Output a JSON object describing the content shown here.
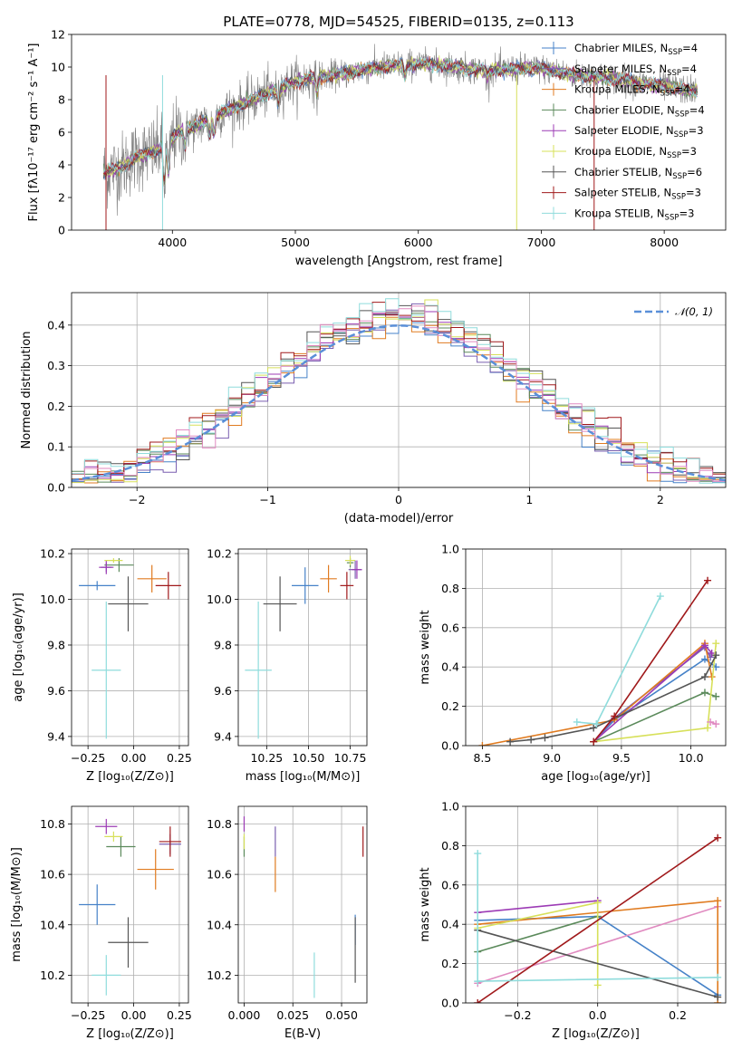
{
  "figure_title": "PLATE=0778, MJD=54525, FIBERID=0135, z=0.113",
  "colors": {
    "Chabrier MILES": "#4682c8",
    "Salpeter MILES": "#7a5fb0",
    "Kroupa MILES": "#e07b20",
    "Chabrier ELODIE": "#5b8a5b",
    "Salpeter ELODIE": "#9c3bb5",
    "Kroupa ELODIE": "#d7e05a",
    "Chabrier STELIB": "#555555",
    "Salpeter STELIB": "#a0191b",
    "Kroupa STELIB": "#8fdcdc",
    "normal": "#5a8fd8"
  },
  "chart_data": [
    {
      "id": "spectrum",
      "type": "line",
      "title": "PLATE=0778, MJD=54525, FIBERID=0135, z=0.113",
      "xlabel": "wavelength [Angstrom, rest frame]",
      "ylabel": "Flux [fλ10⁻¹⁷ erg cm⁻² s⁻¹ A⁻¹]",
      "xlim": [
        3180,
        8500
      ],
      "ylim": [
        0,
        12
      ],
      "xticks": [
        4000,
        5000,
        6000,
        7000,
        8000
      ],
      "yticks": [
        0,
        2,
        4,
        6,
        8,
        10,
        12
      ],
      "grid": false,
      "legend_position": "right",
      "legend": [
        "Chabrier MILES, N_SSP=4",
        "Salpeter MILES, N_SSP=4",
        "Kroupa MILES, N_SSP=4",
        "Chabrier ELODIE, N_SSP=4",
        "Salpeter ELODIE, N_SSP=3",
        "Kroupa ELODIE, N_SSP=3",
        "Chabrier STELIB, N_SSP=6",
        "Salpeter STELIB, N_SSP=3",
        "Kroupa STELIB, N_SSP=3"
      ],
      "continuum": [
        [
          3440,
          3.5
        ],
        [
          3600,
          3.9
        ],
        [
          3700,
          4.5
        ],
        [
          3850,
          4.8
        ],
        [
          3950,
          5.2
        ],
        [
          4050,
          6.0
        ],
        [
          4200,
          6.4
        ],
        [
          4400,
          7.2
        ],
        [
          4600,
          7.8
        ],
        [
          4800,
          8.5
        ],
        [
          5000,
          9.1
        ],
        [
          5200,
          9.4
        ],
        [
          5400,
          9.6
        ],
        [
          5600,
          9.9
        ],
        [
          5800,
          10.1
        ],
        [
          6000,
          10.2
        ],
        [
          6200,
          10.1
        ],
        [
          6400,
          9.9
        ],
        [
          6600,
          9.8
        ],
        [
          6800,
          9.9
        ],
        [
          7000,
          9.9
        ],
        [
          7200,
          9.6
        ],
        [
          7400,
          9.4
        ],
        [
          7600,
          9.3
        ],
        [
          7800,
          9.0
        ],
        [
          8000,
          8.8
        ],
        [
          8270,
          8.5
        ]
      ]
    },
    {
      "id": "residuals",
      "type": "histogram",
      "xlabel": "(data-model)/error",
      "ylabel": "Normed distribution",
      "xlim": [
        -2.5,
        2.5
      ],
      "ylim": [
        0,
        0.48
      ],
      "xticks": [
        -2,
        -1,
        0,
        1,
        2
      ],
      "yticks": [
        0.0,
        0.1,
        0.2,
        0.3,
        0.4
      ],
      "grid": true,
      "legend_position": "upper right",
      "legend": [
        "𝒩(0, 1)"
      ],
      "bin_width": 0.1
    },
    {
      "id": "age_vs_Z",
      "type": "scatter",
      "xlabel": "Z [log₁₀(Z/Z⊙)]",
      "ylabel": "age  [log₁₀(age/yr)]",
      "xlim": [
        -0.34,
        0.3
      ],
      "ylim": [
        9.36,
        10.22
      ],
      "xticks": [
        -0.25,
        0.0,
        0.25
      ],
      "yticks": [
        9.4,
        9.6,
        9.8,
        10.0,
        10.2
      ],
      "grid": true,
      "points": [
        {
          "model": "Chabrier MILES",
          "x": -0.2,
          "y": 10.06,
          "xerr": 0.1,
          "yerr": 0.02
        },
        {
          "model": "Salpeter MILES",
          "x": -0.15,
          "y": 10.14,
          "xerr": 0.03,
          "yerr": 0.02
        },
        {
          "model": "Kroupa MILES",
          "x": 0.1,
          "y": 10.09,
          "xerr": 0.08,
          "yerr": 0.06
        },
        {
          "model": "Chabrier ELODIE",
          "x": -0.08,
          "y": 10.15,
          "xerr": 0.08,
          "yerr": 0.03
        },
        {
          "model": "Salpeter ELODIE",
          "x": -0.15,
          "y": 10.14,
          "xerr": 0.04,
          "yerr": 0.03
        },
        {
          "model": "Kroupa ELODIE",
          "x": -0.11,
          "y": 10.17,
          "xerr": 0.05,
          "yerr": 0.01
        },
        {
          "model": "Chabrier STELIB",
          "x": -0.03,
          "y": 9.98,
          "xerr": 0.11,
          "yerr": 0.12
        },
        {
          "model": "Salpeter STELIB",
          "x": 0.19,
          "y": 10.06,
          "xerr": 0.07,
          "yerr": 0.06
        },
        {
          "model": "Kroupa STELIB",
          "x": -0.15,
          "y": 9.69,
          "xerr": 0.08,
          "yerr": 0.3
        }
      ]
    },
    {
      "id": "age_vs_mass",
      "type": "scatter",
      "xlabel": "mass [log₁₀(M/M⊙)]",
      "ylabel": "",
      "xlim": [
        10.08,
        10.85
      ],
      "ylim": [
        9.36,
        10.22
      ],
      "xticks": [
        10.25,
        10.5,
        10.75
      ],
      "yticks": [
        9.4,
        9.6,
        9.8,
        10.0,
        10.2
      ],
      "grid": true,
      "points": [
        {
          "model": "Chabrier MILES",
          "x": 10.48,
          "y": 10.06,
          "xerr": 0.08,
          "yerr": 0.08
        },
        {
          "model": "Salpeter MILES",
          "x": 10.78,
          "y": 10.13,
          "xerr": 0.04,
          "yerr": 0.04
        },
        {
          "model": "Kroupa MILES",
          "x": 10.62,
          "y": 10.09,
          "xerr": 0.05,
          "yerr": 0.06
        },
        {
          "model": "Chabrier ELODIE",
          "x": 10.75,
          "y": 10.16,
          "xerr": 0.02,
          "yerr": 0.02
        },
        {
          "model": "Salpeter ELODIE",
          "x": 10.79,
          "y": 10.13,
          "xerr": 0.03,
          "yerr": 0.04
        },
        {
          "model": "Kroupa ELODIE",
          "x": 10.75,
          "y": 10.17,
          "xerr": 0.03,
          "yerr": 0.02
        },
        {
          "model": "Chabrier STELIB",
          "x": 10.33,
          "y": 9.98,
          "xerr": 0.1,
          "yerr": 0.12
        },
        {
          "model": "Salpeter STELIB",
          "x": 10.73,
          "y": 10.06,
          "xerr": 0.04,
          "yerr": 0.06
        },
        {
          "model": "Kroupa STELIB",
          "x": 10.2,
          "y": 9.69,
          "xerr": 0.08,
          "yerr": 0.3
        }
      ]
    },
    {
      "id": "weight_vs_age",
      "type": "line",
      "xlabel": "age  [log₁₀(age/yr)]",
      "ylabel": "mass weight",
      "xlim": [
        8.38,
        10.25
      ],
      "ylim": [
        0,
        1.0
      ],
      "xticks": [
        8.5,
        9.0,
        9.5,
        10.0
      ],
      "yticks": [
        0.0,
        0.2,
        0.4,
        0.6,
        0.8,
        1.0
      ],
      "grid": true,
      "series": [
        {
          "model": "Chabrier MILES",
          "x": [
            9.3,
            9.45,
            10.1,
            10.18
          ],
          "y": [
            0.02,
            0.13,
            0.44,
            0.4
          ]
        },
        {
          "model": "Salpeter MILES",
          "x": [
            9.3,
            9.45,
            10.1,
            10.14
          ],
          "y": [
            0.02,
            0.14,
            0.5,
            0.45
          ]
        },
        {
          "model": "Kroupa MILES",
          "x": [
            8.5,
            9.45,
            10.1,
            10.15
          ],
          "y": [
            0.0,
            0.13,
            0.52,
            0.35
          ]
        },
        {
          "model": "Chabrier ELODIE",
          "x": [
            9.3,
            10.1,
            10.18
          ],
          "y": [
            0.02,
            0.27,
            0.25
          ]
        },
        {
          "model": "Salpeter ELODIE",
          "x": [
            9.3,
            10.1,
            10.15
          ],
          "y": [
            0.02,
            0.51,
            0.47
          ]
        },
        {
          "model": "Kroupa ELODIE",
          "x": [
            9.3,
            10.12,
            10.18
          ],
          "y": [
            0.02,
            0.09,
            0.52
          ]
        },
        {
          "model": "Chabrier STELIB",
          "x": [
            8.7,
            8.85,
            8.95,
            9.3,
            10.1,
            10.18
          ],
          "y": [
            0.02,
            0.03,
            0.04,
            0.09,
            0.35,
            0.46
          ]
        },
        {
          "model": "Salpeter STELIB",
          "x": [
            9.3,
            9.45,
            10.12
          ],
          "y": [
            0.02,
            0.15,
            0.84
          ]
        },
        {
          "model": "Kroupa STELIB",
          "x": [
            9.18,
            9.32,
            9.78
          ],
          "y": [
            0.12,
            0.11,
            0.76
          ]
        },
        {
          "model": "Salpeter MILES",
          "x": [
            10.14,
            10.18
          ],
          "y": [
            0.12,
            0.11
          ],
          "color_override": "#e08ac0"
        }
      ]
    },
    {
      "id": "mass_vs_Z",
      "type": "scatter",
      "xlabel": "Z [log₁₀(Z/Z⊙)]",
      "ylabel": "mass [log₁₀(M/M⊙)]",
      "xlim": [
        -0.34,
        0.3
      ],
      "ylim": [
        10.09,
        10.87
      ],
      "xticks": [
        -0.25,
        0.0,
        0.25
      ],
      "yticks": [
        10.2,
        10.4,
        10.6,
        10.8
      ],
      "grid": true,
      "points": [
        {
          "model": "Chabrier MILES",
          "x": -0.2,
          "y": 10.48,
          "xerr": 0.1,
          "yerr": 0.08
        },
        {
          "model": "Salpeter MILES",
          "x": 0.2,
          "y": 10.72,
          "xerr": 0.06,
          "yerr": 0.04
        },
        {
          "model": "Kroupa MILES",
          "x": 0.12,
          "y": 10.62,
          "xerr": 0.1,
          "yerr": 0.08
        },
        {
          "model": "Chabrier ELODIE",
          "x": -0.07,
          "y": 10.71,
          "xerr": 0.08,
          "yerr": 0.04
        },
        {
          "model": "Salpeter ELODIE",
          "x": -0.15,
          "y": 10.79,
          "xerr": 0.06,
          "yerr": 0.03
        },
        {
          "model": "Kroupa ELODIE",
          "x": -0.11,
          "y": 10.75,
          "xerr": 0.05,
          "yerr": 0.02
        },
        {
          "model": "Chabrier STELIB",
          "x": -0.03,
          "y": 10.33,
          "xerr": 0.11,
          "yerr": 0.1
        },
        {
          "model": "Salpeter STELIB",
          "x": 0.2,
          "y": 10.73,
          "xerr": 0.06,
          "yerr": 0.06
        },
        {
          "model": "Kroupa STELIB",
          "x": -0.15,
          "y": 10.2,
          "xerr": 0.08,
          "yerr": 0.08
        }
      ]
    },
    {
      "id": "mass_vs_EBV",
      "type": "scatter",
      "xlabel": "E(B-V)",
      "ylabel": "",
      "xlim": [
        -0.003,
        0.063
      ],
      "ylim": [
        10.09,
        10.87
      ],
      "xticks": [
        0.0,
        0.025,
        0.05
      ],
      "xticklabels": [
        "0.000",
        "0.025",
        "0.050"
      ],
      "yticks": [
        10.2,
        10.4,
        10.6,
        10.8
      ],
      "grid": true,
      "points": [
        {
          "model": "Chabrier MILES",
          "x": 0.057,
          "y": 10.38,
          "xerr": 0,
          "yerr": 0.06
        },
        {
          "model": "Salpeter MILES",
          "x": 0.016,
          "y": 10.73,
          "xerr": 0,
          "yerr": 0.06
        },
        {
          "model": "Kroupa MILES",
          "x": 0.016,
          "y": 10.6,
          "xerr": 0,
          "yerr": 0.07
        },
        {
          "model": "Chabrier ELODIE",
          "x": 0.0,
          "y": 10.71,
          "xerr": 0,
          "yerr": 0.04
        },
        {
          "model": "Salpeter ELODIE",
          "x": 0.0,
          "y": 10.8,
          "xerr": 0,
          "yerr": 0.03
        },
        {
          "model": "Kroupa ELODIE",
          "x": 0.0,
          "y": 10.73,
          "xerr": 0,
          "yerr": 0.03
        },
        {
          "model": "Chabrier STELIB",
          "x": 0.057,
          "y": 10.3,
          "xerr": 0,
          "yerr": 0.13
        },
        {
          "model": "Salpeter STELIB",
          "x": 0.061,
          "y": 10.73,
          "xerr": 0,
          "yerr": 0.06
        },
        {
          "model": "Kroupa STELIB",
          "x": 0.036,
          "y": 10.2,
          "xerr": 0,
          "yerr": 0.09
        }
      ]
    },
    {
      "id": "weight_vs_Z",
      "type": "line",
      "xlabel": "Z [log₁₀(Z/Z⊙)]",
      "ylabel": "mass weight",
      "xlim": [
        -0.33,
        0.32
      ],
      "ylim": [
        0,
        1.0
      ],
      "xticks": [
        -0.2,
        0.0,
        0.2
      ],
      "yticks": [
        0.0,
        0.2,
        0.4,
        0.6,
        0.8,
        1.0
      ],
      "grid": true,
      "series": [
        {
          "model": "Chabrier MILES",
          "x": [
            -0.3,
            0.0,
            0.3
          ],
          "y": [
            0.42,
            0.44,
            0.04
          ]
        },
        {
          "model": "Salpeter MILES",
          "x": [
            -0.3,
            0.3
          ],
          "y": [
            0.1,
            0.49
          ],
          "color_override": "#e08ac0"
        },
        {
          "model": "Kroupa MILES",
          "x": [
            -0.3,
            0.3,
            0.3
          ],
          "y": [
            0.4,
            0.52,
            0.0
          ]
        },
        {
          "model": "Chabrier ELODIE",
          "x": [
            -0.3,
            0.0
          ],
          "y": [
            0.26,
            0.44
          ]
        },
        {
          "model": "Salpeter ELODIE",
          "x": [
            -0.3,
            0.0
          ],
          "y": [
            0.46,
            0.52
          ]
        },
        {
          "model": "Kroupa ELODIE",
          "x": [
            -0.3,
            0.0,
            0.0
          ],
          "y": [
            0.38,
            0.51,
            0.09
          ]
        },
        {
          "model": "Chabrier STELIB",
          "x": [
            -0.3,
            0.3
          ],
          "y": [
            0.37,
            0.03
          ]
        },
        {
          "model": "Salpeter STELIB",
          "x": [
            -0.3,
            0.3
          ],
          "y": [
            0.0,
            0.84
          ]
        },
        {
          "model": "Kroupa STELIB",
          "x": [
            -0.3,
            -0.3,
            0.3
          ],
          "y": [
            0.76,
            0.11,
            0.13
          ]
        }
      ]
    }
  ]
}
